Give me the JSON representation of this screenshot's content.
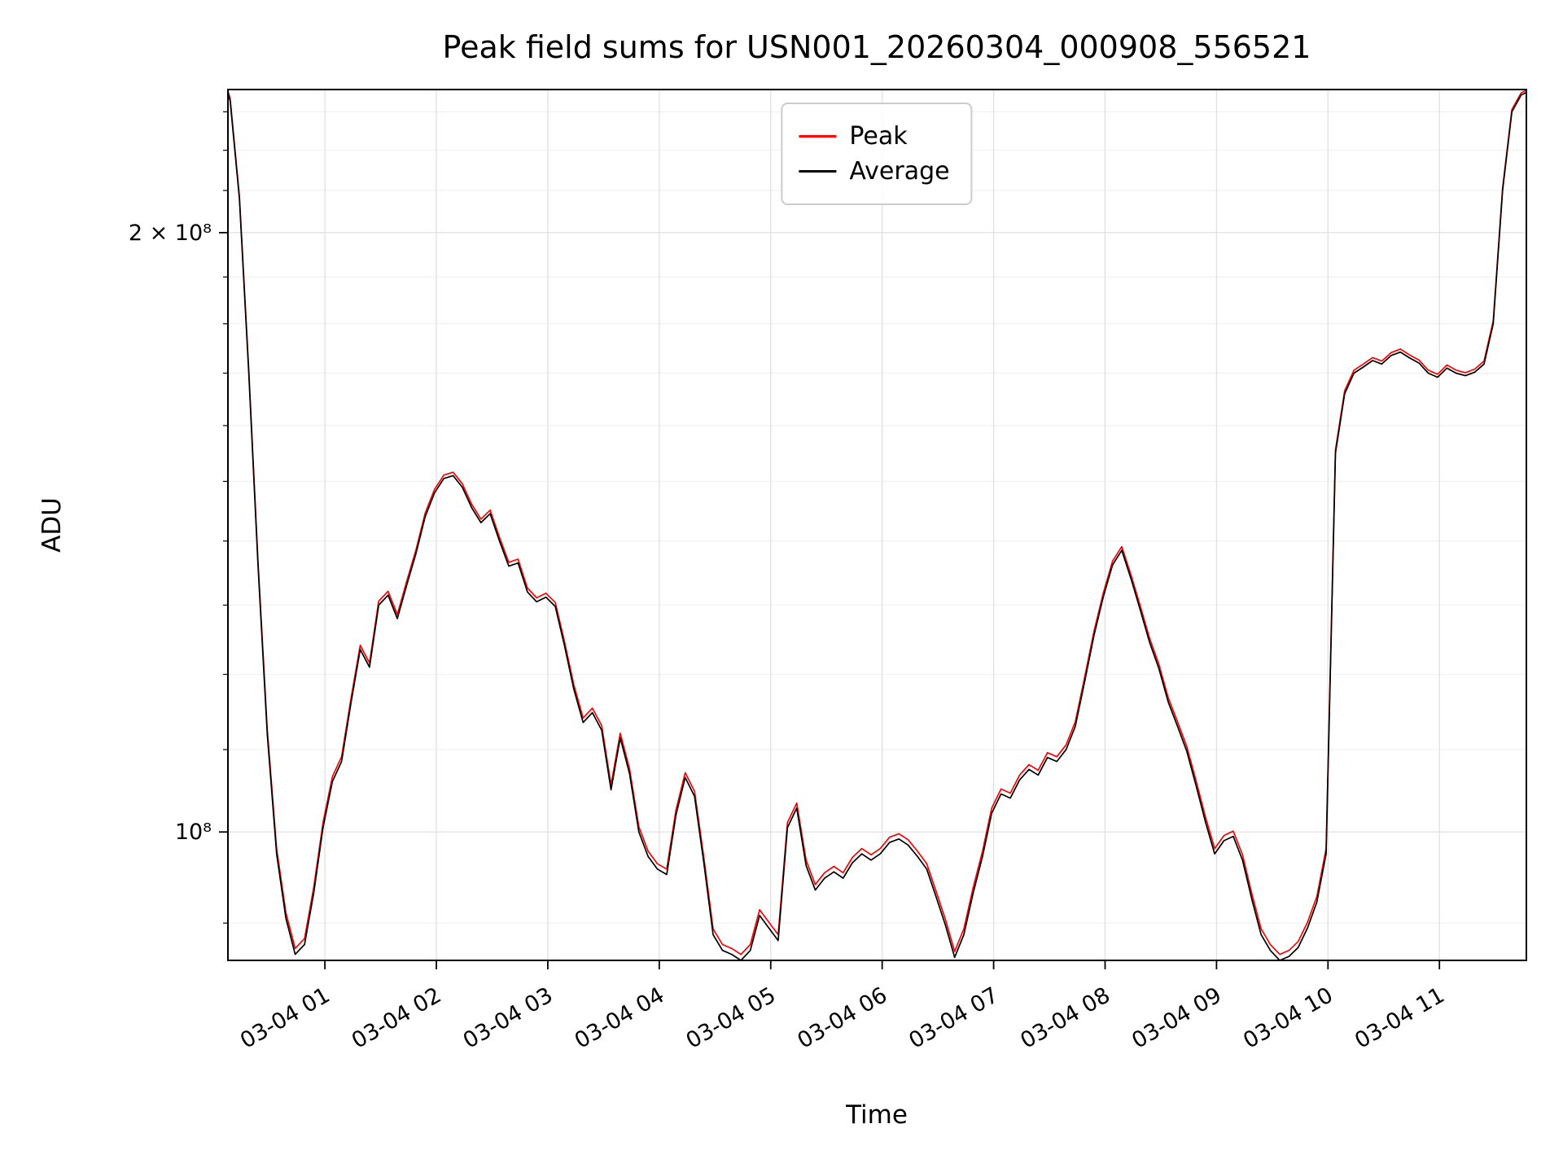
{
  "title": "Peak field sums for USN001_20260304_000908_556521",
  "xlabel": "Time",
  "ylabel": "ADU",
  "chart_data": {
    "type": "line",
    "title": "Peak field sums for USN001_20260304_000908_556521",
    "xlabel": "Time",
    "ylabel": "ADU",
    "y_scale": "log",
    "grid": true,
    "legend_position": "upper center",
    "x_unit": "hours since 2026-03-04 00:00",
    "value_scale": 100000000,
    "values_unit": "ADU (values below are in units of 1e8)",
    "xlim": [
      0.13,
      11.78
    ],
    "ylim": [
      0.862,
      2.36
    ],
    "x_ticks": [
      {
        "pos": 1,
        "label": "03-04 01"
      },
      {
        "pos": 2,
        "label": "03-04 02"
      },
      {
        "pos": 3,
        "label": "03-04 03"
      },
      {
        "pos": 4,
        "label": "03-04 04"
      },
      {
        "pos": 5,
        "label": "03-04 05"
      },
      {
        "pos": 6,
        "label": "03-04 06"
      },
      {
        "pos": 7,
        "label": "03-04 07"
      },
      {
        "pos": 8,
        "label": "03-04 08"
      },
      {
        "pos": 9,
        "label": "03-04 09"
      },
      {
        "pos": 10,
        "label": "03-04 10"
      },
      {
        "pos": 11,
        "label": "03-04 11"
      }
    ],
    "y_ticks": [
      {
        "value": 1.0,
        "label": "10⁸"
      },
      {
        "value": 2.0,
        "label": "2 × 10⁸"
      }
    ],
    "x": [
      0.13,
      0.15,
      0.233,
      0.317,
      0.4,
      0.483,
      0.567,
      0.65,
      0.733,
      0.817,
      0.9,
      0.983,
      1.067,
      1.15,
      1.233,
      1.317,
      1.4,
      1.483,
      1.567,
      1.65,
      1.733,
      1.817,
      1.9,
      1.983,
      2.067,
      2.15,
      2.233,
      2.317,
      2.4,
      2.483,
      2.567,
      2.65,
      2.733,
      2.817,
      2.9,
      2.983,
      3.067,
      3.15,
      3.233,
      3.317,
      3.4,
      3.483,
      3.567,
      3.65,
      3.733,
      3.817,
      3.9,
      3.983,
      4.067,
      4.15,
      4.233,
      4.317,
      4.4,
      4.483,
      4.567,
      4.65,
      4.733,
      4.817,
      4.9,
      4.983,
      5.067,
      5.15,
      5.233,
      5.317,
      5.4,
      5.483,
      5.567,
      5.65,
      5.733,
      5.817,
      5.9,
      5.983,
      6.067,
      6.15,
      6.233,
      6.317,
      6.4,
      6.483,
      6.567,
      6.65,
      6.733,
      6.817,
      6.9,
      6.983,
      7.067,
      7.15,
      7.233,
      7.317,
      7.4,
      7.483,
      7.567,
      7.65,
      7.733,
      7.817,
      7.9,
      7.983,
      8.067,
      8.15,
      8.233,
      8.317,
      8.4,
      8.483,
      8.567,
      8.65,
      8.733,
      8.817,
      8.9,
      8.983,
      9.067,
      9.15,
      9.233,
      9.317,
      9.4,
      9.483,
      9.567,
      9.65,
      9.733,
      9.817,
      9.9,
      9.983,
      10.067,
      10.15,
      10.233,
      10.317,
      10.4,
      10.483,
      10.567,
      10.65,
      10.733,
      10.817,
      10.9,
      10.983,
      11.067,
      11.15,
      11.233,
      11.317,
      11.4,
      11.483,
      11.567,
      11.65,
      11.733,
      11.78
    ],
    "series": [
      {
        "name": "Peak",
        "color": "#ff0000",
        "values": [
          2.356,
          2.336,
          2.086,
          1.706,
          1.366,
          1.126,
          0.981,
          0.911,
          0.874,
          0.884,
          0.938,
          1.011,
          1.066,
          1.091,
          1.166,
          1.241,
          1.216,
          1.306,
          1.321,
          1.286,
          1.336,
          1.386,
          1.446,
          1.486,
          1.511,
          1.516,
          1.496,
          1.461,
          1.436,
          1.451,
          1.406,
          1.366,
          1.371,
          1.326,
          1.311,
          1.318,
          1.304,
          1.246,
          1.186,
          1.141,
          1.154,
          1.131,
          1.056,
          1.121,
          1.076,
          1.006,
          0.978,
          0.964,
          0.958,
          1.026,
          1.071,
          1.048,
          0.971,
          0.894,
          0.878,
          0.874,
          0.868,
          0.878,
          0.914,
          0.901,
          0.888,
          1.011,
          1.034,
          0.968,
          0.941,
          0.954,
          0.961,
          0.954,
          0.971,
          0.981,
          0.974,
          0.981,
          0.994,
          0.998,
          0.991,
          0.978,
          0.964,
          0.934,
          0.904,
          0.871,
          0.894,
          0.938,
          0.978,
          1.028,
          1.051,
          1.046,
          1.068,
          1.081,
          1.074,
          1.096,
          1.091,
          1.106,
          1.136,
          1.196,
          1.261,
          1.318,
          1.368,
          1.391,
          1.346,
          1.298,
          1.251,
          1.214,
          1.168,
          1.136,
          1.104,
          1.061,
          1.018,
          0.981,
          0.996,
          1.001,
          0.974,
          0.931,
          0.894,
          0.878,
          0.868,
          0.872,
          0.881,
          0.901,
          0.928,
          0.981,
          1.556,
          1.666,
          1.706,
          1.718,
          1.731,
          1.724,
          1.741,
          1.748,
          1.736,
          1.726,
          1.706,
          1.698,
          1.716,
          1.706,
          1.701,
          1.708,
          1.724,
          1.806,
          2.106,
          2.306,
          2.351,
          2.358
        ]
      },
      {
        "name": "Average",
        "color": "#000000",
        "values": [
          2.35,
          2.33,
          2.08,
          1.7,
          1.36,
          1.12,
          0.975,
          0.905,
          0.868,
          0.878,
          0.932,
          1.005,
          1.06,
          1.085,
          1.16,
          1.235,
          1.21,
          1.3,
          1.315,
          1.28,
          1.33,
          1.38,
          1.44,
          1.48,
          1.505,
          1.51,
          1.49,
          1.455,
          1.43,
          1.445,
          1.4,
          1.36,
          1.365,
          1.32,
          1.305,
          1.312,
          1.298,
          1.24,
          1.18,
          1.135,
          1.148,
          1.125,
          1.05,
          1.115,
          1.07,
          1.0,
          0.972,
          0.958,
          0.952,
          1.02,
          1.065,
          1.042,
          0.965,
          0.888,
          0.872,
          0.868,
          0.862,
          0.872,
          0.908,
          0.895,
          0.882,
          1.005,
          1.028,
          0.962,
          0.935,
          0.948,
          0.955,
          0.948,
          0.965,
          0.975,
          0.968,
          0.975,
          0.988,
          0.992,
          0.985,
          0.972,
          0.958,
          0.928,
          0.898,
          0.865,
          0.888,
          0.932,
          0.972,
          1.022,
          1.045,
          1.04,
          1.062,
          1.075,
          1.068,
          1.09,
          1.085,
          1.1,
          1.13,
          1.19,
          1.255,
          1.312,
          1.362,
          1.385,
          1.34,
          1.292,
          1.245,
          1.208,
          1.162,
          1.13,
          1.098,
          1.055,
          1.012,
          0.975,
          0.99,
          0.995,
          0.968,
          0.925,
          0.888,
          0.872,
          0.862,
          0.866,
          0.875,
          0.895,
          0.922,
          0.975,
          1.55,
          1.66,
          1.7,
          1.712,
          1.725,
          1.718,
          1.735,
          1.742,
          1.73,
          1.72,
          1.7,
          1.692,
          1.71,
          1.7,
          1.695,
          1.702,
          1.718,
          1.8,
          2.1,
          2.3,
          2.345,
          2.352
        ]
      }
    ]
  }
}
